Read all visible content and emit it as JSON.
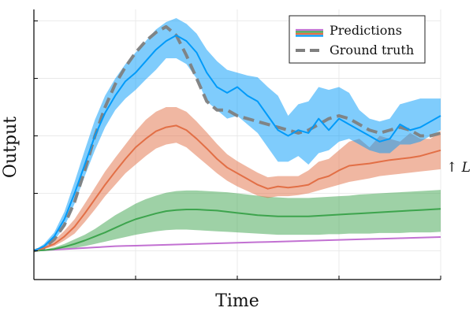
{
  "chart_data": {
    "type": "line",
    "xlabel": "Time",
    "ylabel": "Output",
    "xlim": [
      0,
      40
    ],
    "ylim": [
      -0.5,
      4.2
    ],
    "x_ticks": [
      10,
      20,
      30,
      40
    ],
    "y_ticks": [
      0,
      1,
      2,
      3,
      4
    ],
    "tick_labels_shown": false,
    "grid": true,
    "legend_position": "top-right",
    "legend": [
      {
        "label": "Predictions",
        "style": "solid",
        "colors": [
          "#c271d2",
          "#3da44d",
          "#e26f46",
          "#009af9"
        ]
      },
      {
        "label": "Ground truth",
        "style": "dashed",
        "colors": [
          "#808080"
        ]
      }
    ],
    "annotation": "↑ L",
    "x": [
      0,
      1,
      2,
      3,
      4,
      5,
      6,
      7,
      8,
      9,
      10,
      11,
      12,
      13,
      14,
      15,
      16,
      17,
      18,
      19,
      20,
      21,
      22,
      23,
      24,
      25,
      26,
      27,
      28,
      29,
      30,
      31,
      32,
      33,
      34,
      35,
      36,
      37,
      38,
      39,
      40
    ],
    "ground_truth": {
      "name": "Ground truth",
      "color": "#808080",
      "values": [
        0,
        0.05,
        0.2,
        0.45,
        0.85,
        1.4,
        2.0,
        2.5,
        2.9,
        3.2,
        3.45,
        3.65,
        3.8,
        3.9,
        3.75,
        3.4,
        3.0,
        2.6,
        2.45,
        2.45,
        2.35,
        2.3,
        2.25,
        2.2,
        2.15,
        2.1,
        2.05,
        2.1,
        2.2,
        2.3,
        2.35,
        2.3,
        2.2,
        2.1,
        2.05,
        2.1,
        2.15,
        2.1,
        2.0,
        2.0,
        2.05
      ]
    },
    "series": [
      {
        "name": "",
        "color": "#c271d2",
        "values": [
          0,
          0.01,
          0.02,
          0.03,
          0.04,
          0.05,
          0.06,
          0.07,
          0.08,
          0.085,
          0.09,
          0.095,
          0.1,
          0.105,
          0.11,
          0.115,
          0.12,
          0.125,
          0.13,
          0.135,
          0.14,
          0.145,
          0.15,
          0.155,
          0.16,
          0.165,
          0.17,
          0.175,
          0.18,
          0.185,
          0.19,
          0.195,
          0.2,
          0.205,
          0.21,
          0.215,
          0.22,
          0.225,
          0.23,
          0.235,
          0.24
        ],
        "lower": [
          0,
          0.01,
          0.02,
          0.03,
          0.04,
          0.05,
          0.06,
          0.07,
          0.08,
          0.085,
          0.09,
          0.095,
          0.1,
          0.105,
          0.11,
          0.115,
          0.12,
          0.125,
          0.13,
          0.135,
          0.14,
          0.145,
          0.15,
          0.155,
          0.16,
          0.165,
          0.17,
          0.175,
          0.18,
          0.185,
          0.19,
          0.195,
          0.2,
          0.205,
          0.21,
          0.215,
          0.22,
          0.225,
          0.23,
          0.235,
          0.24
        ],
        "upper": [
          0,
          0.01,
          0.02,
          0.03,
          0.04,
          0.05,
          0.06,
          0.07,
          0.08,
          0.085,
          0.09,
          0.095,
          0.1,
          0.105,
          0.11,
          0.115,
          0.12,
          0.125,
          0.13,
          0.135,
          0.14,
          0.145,
          0.15,
          0.155,
          0.16,
          0.165,
          0.17,
          0.175,
          0.18,
          0.185,
          0.19,
          0.195,
          0.2,
          0.205,
          0.21,
          0.215,
          0.22,
          0.225,
          0.23,
          0.235,
          0.24
        ]
      },
      {
        "name": "",
        "color": "#3da44d",
        "values": [
          0,
          0.01,
          0.03,
          0.07,
          0.12,
          0.18,
          0.25,
          0.32,
          0.4,
          0.48,
          0.55,
          0.6,
          0.65,
          0.69,
          0.71,
          0.72,
          0.72,
          0.71,
          0.7,
          0.68,
          0.66,
          0.64,
          0.62,
          0.61,
          0.6,
          0.6,
          0.6,
          0.6,
          0.61,
          0.62,
          0.63,
          0.64,
          0.65,
          0.66,
          0.67,
          0.68,
          0.69,
          0.7,
          0.71,
          0.72,
          0.73
        ],
        "lower": [
          0,
          0.005,
          0.01,
          0.03,
          0.05,
          0.08,
          0.12,
          0.16,
          0.2,
          0.24,
          0.28,
          0.31,
          0.34,
          0.36,
          0.37,
          0.37,
          0.36,
          0.35,
          0.34,
          0.33,
          0.32,
          0.31,
          0.3,
          0.29,
          0.28,
          0.28,
          0.28,
          0.28,
          0.28,
          0.29,
          0.29,
          0.3,
          0.3,
          0.3,
          0.31,
          0.31,
          0.31,
          0.32,
          0.32,
          0.32,
          0.33
        ],
        "upper": [
          0,
          0.02,
          0.06,
          0.12,
          0.2,
          0.28,
          0.38,
          0.5,
          0.62,
          0.72,
          0.82,
          0.9,
          0.96,
          1.01,
          1.04,
          1.05,
          1.05,
          1.04,
          1.03,
          1.02,
          1.0,
          0.98,
          0.96,
          0.94,
          0.93,
          0.92,
          0.92,
          0.92,
          0.93,
          0.94,
          0.95,
          0.96,
          0.98,
          0.99,
          1.0,
          1.01,
          1.02,
          1.03,
          1.04,
          1.05,
          1.06
        ]
      },
      {
        "name": "",
        "color": "#e26f46",
        "values": [
          0,
          0.05,
          0.12,
          0.25,
          0.42,
          0.65,
          0.9,
          1.15,
          1.38,
          1.6,
          1.8,
          1.95,
          2.08,
          2.15,
          2.18,
          2.1,
          1.95,
          1.78,
          1.6,
          1.45,
          1.35,
          1.25,
          1.15,
          1.08,
          1.12,
          1.1,
          1.12,
          1.15,
          1.25,
          1.3,
          1.4,
          1.48,
          1.5,
          1.52,
          1.55,
          1.58,
          1.6,
          1.62,
          1.65,
          1.7,
          1.75
        ],
        "lower": [
          0,
          0.03,
          0.08,
          0.18,
          0.3,
          0.5,
          0.72,
          0.95,
          1.15,
          1.35,
          1.5,
          1.65,
          1.78,
          1.85,
          1.88,
          1.8,
          1.65,
          1.5,
          1.35,
          1.22,
          1.12,
          1.04,
          0.96,
          0.92,
          0.95,
          0.95,
          0.97,
          1.0,
          1.05,
          1.1,
          1.15,
          1.2,
          1.23,
          1.26,
          1.3,
          1.32,
          1.34,
          1.36,
          1.38,
          1.4,
          1.42
        ],
        "upper": [
          0,
          0.08,
          0.18,
          0.35,
          0.55,
          0.82,
          1.1,
          1.38,
          1.62,
          1.85,
          2.08,
          2.28,
          2.42,
          2.5,
          2.5,
          2.42,
          2.25,
          2.06,
          1.86,
          1.68,
          1.56,
          1.46,
          1.36,
          1.28,
          1.3,
          1.3,
          1.3,
          1.4,
          1.55,
          1.6,
          1.75,
          1.9,
          1.95,
          1.8,
          2.0,
          1.95,
          1.9,
          2.05,
          1.95,
          1.95,
          2.08
        ]
      },
      {
        "name": "",
        "color": "#009af9",
        "values": [
          0,
          0.08,
          0.25,
          0.55,
          1.0,
          1.5,
          2.0,
          2.4,
          2.7,
          2.95,
          3.1,
          3.3,
          3.5,
          3.65,
          3.75,
          3.65,
          3.45,
          3.1,
          2.85,
          2.75,
          2.85,
          2.7,
          2.6,
          2.35,
          2.1,
          2.0,
          2.1,
          2.05,
          2.3,
          2.1,
          2.3,
          2.2,
          2.1,
          2.0,
          1.9,
          1.95,
          2.2,
          2.1,
          2.15,
          2.25,
          2.35
        ],
        "lower": [
          0,
          0.05,
          0.18,
          0.42,
          0.82,
          1.3,
          1.75,
          2.15,
          2.45,
          2.65,
          2.8,
          2.98,
          3.15,
          3.35,
          3.35,
          3.25,
          3.0,
          2.6,
          2.45,
          2.3,
          2.35,
          2.2,
          2.05,
          1.8,
          1.55,
          1.55,
          1.65,
          1.5,
          1.7,
          1.75,
          1.9,
          1.95,
          1.85,
          1.75,
          1.7,
          1.7,
          1.85,
          1.85,
          1.9,
          2.0,
          2.1
        ],
        "upper": [
          0,
          0.12,
          0.32,
          0.68,
          1.2,
          1.75,
          2.28,
          2.7,
          3.0,
          3.25,
          3.45,
          3.65,
          3.85,
          3.98,
          4.05,
          3.95,
          3.78,
          3.5,
          3.3,
          3.15,
          3.1,
          3.05,
          3.02,
          2.85,
          2.7,
          2.35,
          2.55,
          2.6,
          2.85,
          2.8,
          2.85,
          2.75,
          2.45,
          2.3,
          2.25,
          2.3,
          2.55,
          2.6,
          2.65,
          2.65,
          2.65
        ]
      }
    ]
  }
}
